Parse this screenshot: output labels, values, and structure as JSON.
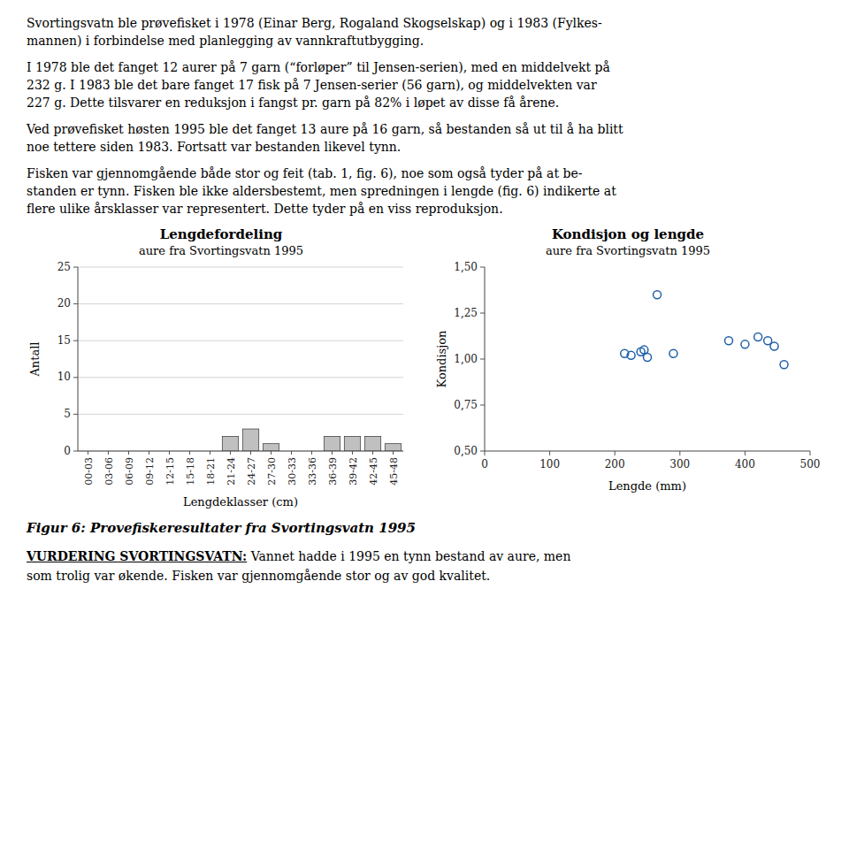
{
  "paragraphs": [
    [
      "Svortingsvatn ble prøvefisket i 1978 (Einar Berg, Rogaland Skogselskap) og i 1983 (Fylkes-",
      "mannen) i forbindelse med planlegging av vannkraftutbygging."
    ],
    [
      "I 1978 ble det fanget 12 aurer på 7 garn (“forløper” til Jensen-serien), med en middelvekt på",
      "232 g. I 1983 ble det bare fanget 17 fisk på 7 Jensen-serier (56 garn), og middelvekten var",
      "227 g. Dette tilsvarer en reduksjon i fangst pr. garn på 82% i løpet av disse få årene."
    ],
    [
      "Ved prøvefisket høsten 1995 ble det fanget 13 aure på 16 garn, så bestanden så ut til å ha blitt",
      "noe tettere siden 1983. Fortsatt var bestanden likevel tynn."
    ],
    [
      "Fisken var gjennomgående både stor og feit (tab. 1, fig. 6), noe som også tyder på at be-",
      "standen er tynn. Fisken ble ikke aldersbestemt, men spredningen i lengde (fig. 6) indikerte at",
      "flere ulike årsklasser var representert. Dette tyder på en viss reproduksjon."
    ]
  ],
  "caption": "Figur 6: Provefiskeresultater fra Svortingsvatn 1995",
  "bottom_heading": "VURDERING SVORTINGSVATN:",
  "bottom_text": [
    " Vannet hadde i 1995 en tynn bestand av aure, men",
    "som trolig var økende. Fisken var gjennomgående stor og av god kvalitet."
  ],
  "chart_data": [
    {
      "type": "bar",
      "title": "Lengdefordeling",
      "subtitle": "aure fra Svortingsvatn 1995",
      "categories": [
        "00-03",
        "03-06",
        "06-09",
        "09-12",
        "12-15",
        "15-18",
        "18-21",
        "21-24",
        "24-27",
        "27-30",
        "30-33",
        "33-36",
        "36-39",
        "39-42",
        "42-45",
        "45-48"
      ],
      "values": [
        0,
        0,
        0,
        0,
        0,
        0,
        0,
        2,
        3,
        1,
        0,
        0,
        2,
        2,
        2,
        1
      ],
      "color": "#c0c0c0",
      "xlabel": "Lengdeklasser (cm)",
      "ylabel": "Antall",
      "ylim": [
        0,
        25
      ],
      "yticks": [
        0,
        5,
        10,
        15,
        20,
        25
      ],
      "grid": true
    },
    {
      "type": "scatter",
      "title": "Kondisjon og lengde",
      "subtitle": "aure fra Svortingsvatn 1995",
      "x": [
        215,
        225,
        240,
        245,
        250,
        265,
        290,
        375,
        400,
        420,
        435,
        445,
        460
      ],
      "values": [
        1.03,
        1.02,
        1.04,
        1.05,
        1.01,
        1.35,
        1.03,
        1.1,
        1.08,
        1.12,
        1.1,
        1.07,
        0.97
      ],
      "xlabel": "Lengde (mm)",
      "ylabel": "Kondisjon",
      "xlim": [
        0,
        500
      ],
      "ylim": [
        0.5,
        1.5
      ],
      "xticks": [
        0,
        100,
        200,
        300,
        400,
        500
      ],
      "yticks": [
        {
          "value": 0.5,
          "label": "0,50"
        },
        {
          "value": 0.75,
          "label": "0,75"
        },
        {
          "value": 1.0,
          "label": "1,00"
        },
        {
          "value": 1.25,
          "label": "1,25"
        },
        {
          "value": 1.5,
          "label": "1,50"
        }
      ],
      "marker": "circle",
      "grid": false
    }
  ]
}
